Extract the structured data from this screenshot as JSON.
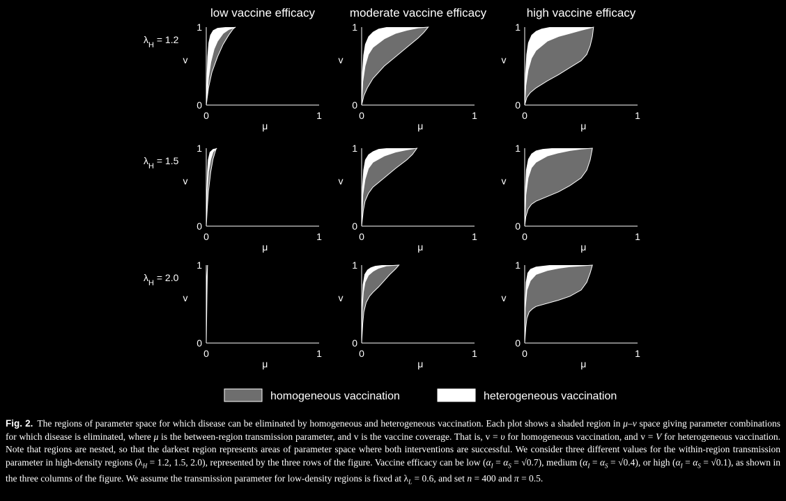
{
  "chart_data": {
    "type": "area",
    "column_titles": [
      "low vaccine efficacy",
      "moderate vaccine efficacy",
      "high vaccine efficacy"
    ],
    "row_labels": [
      {
        "symbol": "λ",
        "subscript": "H",
        "value": " = 1.2"
      },
      {
        "symbol": "λ",
        "subscript": "H",
        "value": " = 1.5"
      },
      {
        "symbol": "λ",
        "subscript": "H",
        "value": " = 2.0"
      }
    ],
    "xlabel": "μ",
    "ylabel": "v",
    "xlim": [
      0,
      1
    ],
    "ylim": [
      0,
      1
    ],
    "xticks": [
      "0",
      "1"
    ],
    "yticks": [
      "0",
      "1"
    ],
    "legend": [
      {
        "label": "homogeneous vaccination",
        "color": "#6e6e6e"
      },
      {
        "label": "heterogeneous vaccination",
        "color": "#ffffff"
      }
    ],
    "panels": [
      {
        "row": 0,
        "col": 0,
        "homogeneous_lower": [
          [
            0,
            0
          ],
          [
            0.02,
            0.22
          ],
          [
            0.05,
            0.42
          ],
          [
            0.1,
            0.62
          ],
          [
            0.15,
            0.78
          ],
          [
            0.2,
            0.9
          ],
          [
            0.24,
            0.98
          ],
          [
            0.26,
            1.0
          ]
        ],
        "homogeneous_upper": [
          [
            0,
            0
          ],
          [
            0.02,
            0.35
          ],
          [
            0.04,
            0.55
          ],
          [
            0.07,
            0.72
          ],
          [
            0.1,
            0.82
          ],
          [
            0.15,
            0.92
          ],
          [
            0.2,
            0.97
          ],
          [
            0.26,
            1.0
          ]
        ],
        "heterogeneous_upper": [
          [
            0,
            0
          ],
          [
            0.005,
            0.4
          ],
          [
            0.01,
            0.62
          ],
          [
            0.02,
            0.8
          ],
          [
            0.035,
            0.9
          ],
          [
            0.06,
            0.96
          ],
          [
            0.1,
            0.99
          ],
          [
            0.17,
            1.0
          ],
          [
            0.34,
            1.0
          ]
        ]
      },
      {
        "row": 0,
        "col": 1,
        "homogeneous_lower": [
          [
            0,
            0
          ],
          [
            0.02,
            0.12
          ],
          [
            0.05,
            0.22
          ],
          [
            0.1,
            0.34
          ],
          [
            0.2,
            0.5
          ],
          [
            0.3,
            0.62
          ],
          [
            0.4,
            0.74
          ],
          [
            0.5,
            0.86
          ],
          [
            0.55,
            0.93
          ],
          [
            0.59,
            1.0
          ]
        ],
        "homogeneous_upper": [
          [
            0,
            0
          ],
          [
            0.01,
            0.3
          ],
          [
            0.03,
            0.5
          ],
          [
            0.06,
            0.65
          ],
          [
            0.1,
            0.74
          ],
          [
            0.2,
            0.85
          ],
          [
            0.3,
            0.92
          ],
          [
            0.4,
            0.96
          ],
          [
            0.5,
            0.99
          ],
          [
            0.59,
            1.0
          ]
        ],
        "heterogeneous_upper": [
          [
            0,
            0
          ],
          [
            0.005,
            0.42
          ],
          [
            0.015,
            0.64
          ],
          [
            0.03,
            0.78
          ],
          [
            0.06,
            0.88
          ],
          [
            0.1,
            0.94
          ],
          [
            0.15,
            0.98
          ],
          [
            0.22,
            1.0
          ],
          [
            0.59,
            1.0
          ]
        ]
      },
      {
        "row": 0,
        "col": 2,
        "homogeneous_lower": [
          [
            0,
            0
          ],
          [
            0.02,
            0.1
          ],
          [
            0.05,
            0.16
          ],
          [
            0.1,
            0.22
          ],
          [
            0.2,
            0.31
          ],
          [
            0.3,
            0.39
          ],
          [
            0.4,
            0.48
          ],
          [
            0.5,
            0.57
          ],
          [
            0.55,
            0.65
          ],
          [
            0.58,
            0.76
          ],
          [
            0.6,
            0.88
          ],
          [
            0.61,
            1.0
          ]
        ],
        "homogeneous_upper": [
          [
            0,
            0
          ],
          [
            0.01,
            0.25
          ],
          [
            0.03,
            0.45
          ],
          [
            0.06,
            0.6
          ],
          [
            0.1,
            0.7
          ],
          [
            0.2,
            0.82
          ],
          [
            0.3,
            0.88
          ],
          [
            0.4,
            0.92
          ],
          [
            0.5,
            0.96
          ],
          [
            0.61,
            1.0
          ]
        ],
        "heterogeneous_upper": [
          [
            0,
            0
          ],
          [
            0.005,
            0.4
          ],
          [
            0.015,
            0.65
          ],
          [
            0.03,
            0.8
          ],
          [
            0.06,
            0.9
          ],
          [
            0.1,
            0.95
          ],
          [
            0.15,
            0.98
          ],
          [
            0.22,
            1.0
          ],
          [
            0.61,
            1.0
          ]
        ]
      },
      {
        "row": 1,
        "col": 0,
        "homogeneous_lower": [
          [
            0,
            0
          ],
          [
            0.01,
            0.25
          ],
          [
            0.02,
            0.45
          ],
          [
            0.04,
            0.7
          ],
          [
            0.06,
            0.86
          ],
          [
            0.08,
            0.96
          ],
          [
            0.09,
            1.0
          ]
        ],
        "homogeneous_upper": [
          [
            0,
            0
          ],
          [
            0.005,
            0.3
          ],
          [
            0.01,
            0.5
          ],
          [
            0.02,
            0.7
          ],
          [
            0.04,
            0.86
          ],
          [
            0.06,
            0.95
          ],
          [
            0.09,
            1.0
          ]
        ],
        "heterogeneous_upper": [
          [
            0,
            0
          ],
          [
            0.003,
            0.45
          ],
          [
            0.008,
            0.7
          ],
          [
            0.015,
            0.85
          ],
          [
            0.03,
            0.95
          ],
          [
            0.06,
            0.99
          ],
          [
            0.1,
            1.0
          ],
          [
            0.14,
            1.0
          ]
        ]
      },
      {
        "row": 1,
        "col": 1,
        "homogeneous_lower": [
          [
            0,
            0
          ],
          [
            0.015,
            0.2
          ],
          [
            0.03,
            0.32
          ],
          [
            0.06,
            0.42
          ],
          [
            0.1,
            0.5
          ],
          [
            0.2,
            0.62
          ],
          [
            0.3,
            0.74
          ],
          [
            0.4,
            0.85
          ],
          [
            0.45,
            0.92
          ],
          [
            0.49,
            1.0
          ]
        ],
        "homogeneous_upper": [
          [
            0,
            0
          ],
          [
            0.01,
            0.4
          ],
          [
            0.03,
            0.6
          ],
          [
            0.06,
            0.74
          ],
          [
            0.1,
            0.82
          ],
          [
            0.2,
            0.9
          ],
          [
            0.3,
            0.95
          ],
          [
            0.4,
            0.98
          ],
          [
            0.49,
            1.0
          ]
        ],
        "heterogeneous_upper": [
          [
            0,
            0
          ],
          [
            0.005,
            0.5
          ],
          [
            0.015,
            0.72
          ],
          [
            0.03,
            0.85
          ],
          [
            0.06,
            0.92
          ],
          [
            0.1,
            0.96
          ],
          [
            0.15,
            0.99
          ],
          [
            0.22,
            1.0
          ],
          [
            0.49,
            1.0
          ]
        ]
      },
      {
        "row": 1,
        "col": 2,
        "homogeneous_lower": [
          [
            0,
            0
          ],
          [
            0.01,
            0.12
          ],
          [
            0.03,
            0.22
          ],
          [
            0.06,
            0.28
          ],
          [
            0.1,
            0.32
          ],
          [
            0.2,
            0.38
          ],
          [
            0.3,
            0.44
          ],
          [
            0.4,
            0.52
          ],
          [
            0.5,
            0.62
          ],
          [
            0.55,
            0.72
          ],
          [
            0.58,
            0.85
          ],
          [
            0.6,
            1.0
          ]
        ],
        "homogeneous_upper": [
          [
            0,
            0
          ],
          [
            0.01,
            0.4
          ],
          [
            0.03,
            0.62
          ],
          [
            0.06,
            0.75
          ],
          [
            0.1,
            0.82
          ],
          [
            0.2,
            0.9
          ],
          [
            0.3,
            0.94
          ],
          [
            0.4,
            0.97
          ],
          [
            0.5,
            0.99
          ],
          [
            0.6,
            1.0
          ]
        ],
        "heterogeneous_upper": [
          [
            0,
            0
          ],
          [
            0.005,
            0.5
          ],
          [
            0.012,
            0.72
          ],
          [
            0.03,
            0.86
          ],
          [
            0.06,
            0.93
          ],
          [
            0.1,
            0.97
          ],
          [
            0.16,
            0.99
          ],
          [
            0.24,
            1.0
          ],
          [
            0.6,
            1.0
          ]
        ]
      },
      {
        "row": 2,
        "col": 0,
        "homogeneous_lower": [
          [
            0,
            0
          ],
          [
            0.003,
            0.3
          ],
          [
            0.006,
            0.6
          ],
          [
            0.009,
            0.85
          ],
          [
            0.011,
            1.0
          ]
        ],
        "homogeneous_upper": [
          [
            0,
            0
          ],
          [
            0.002,
            0.3
          ],
          [
            0.004,
            0.6
          ],
          [
            0.006,
            0.85
          ],
          [
            0.011,
            1.0
          ]
        ],
        "heterogeneous_upper": [
          [
            0,
            0
          ],
          [
            0.002,
            0.5
          ],
          [
            0.005,
            0.8
          ],
          [
            0.01,
            0.95
          ],
          [
            0.015,
            1.0
          ],
          [
            0.025,
            1.0
          ]
        ]
      },
      {
        "row": 2,
        "col": 1,
        "homogeneous_lower": [
          [
            0,
            0
          ],
          [
            0.01,
            0.25
          ],
          [
            0.02,
            0.4
          ],
          [
            0.04,
            0.52
          ],
          [
            0.07,
            0.6
          ],
          [
            0.1,
            0.65
          ],
          [
            0.15,
            0.72
          ],
          [
            0.2,
            0.8
          ],
          [
            0.25,
            0.88
          ],
          [
            0.3,
            0.95
          ],
          [
            0.33,
            1.0
          ]
        ],
        "homogeneous_upper": [
          [
            0,
            0
          ],
          [
            0.005,
            0.45
          ],
          [
            0.015,
            0.65
          ],
          [
            0.03,
            0.78
          ],
          [
            0.06,
            0.87
          ],
          [
            0.1,
            0.92
          ],
          [
            0.15,
            0.96
          ],
          [
            0.22,
            0.99
          ],
          [
            0.33,
            1.0
          ]
        ],
        "heterogeneous_upper": [
          [
            0,
            0
          ],
          [
            0.004,
            0.55
          ],
          [
            0.01,
            0.75
          ],
          [
            0.025,
            0.88
          ],
          [
            0.05,
            0.94
          ],
          [
            0.08,
            0.97
          ],
          [
            0.12,
            0.99
          ],
          [
            0.18,
            1.0
          ],
          [
            0.33,
            1.0
          ]
        ]
      },
      {
        "row": 2,
        "col": 2,
        "homogeneous_lower": [
          [
            0,
            0
          ],
          [
            0.01,
            0.2
          ],
          [
            0.02,
            0.32
          ],
          [
            0.04,
            0.4
          ],
          [
            0.07,
            0.44
          ],
          [
            0.1,
            0.47
          ],
          [
            0.2,
            0.51
          ],
          [
            0.3,
            0.55
          ],
          [
            0.4,
            0.6
          ],
          [
            0.5,
            0.68
          ],
          [
            0.55,
            0.78
          ],
          [
            0.58,
            0.9
          ],
          [
            0.6,
            1.0
          ]
        ],
        "homogeneous_upper": [
          [
            0,
            0
          ],
          [
            0.005,
            0.45
          ],
          [
            0.02,
            0.68
          ],
          [
            0.05,
            0.8
          ],
          [
            0.1,
            0.88
          ],
          [
            0.2,
            0.93
          ],
          [
            0.3,
            0.96
          ],
          [
            0.4,
            0.98
          ],
          [
            0.5,
            0.99
          ],
          [
            0.6,
            1.0
          ]
        ],
        "heterogeneous_upper": [
          [
            0,
            0
          ],
          [
            0.004,
            0.55
          ],
          [
            0.01,
            0.78
          ],
          [
            0.025,
            0.9
          ],
          [
            0.05,
            0.95
          ],
          [
            0.1,
            0.98
          ],
          [
            0.16,
            0.99
          ],
          [
            0.22,
            1.0
          ],
          [
            0.6,
            1.0
          ]
        ]
      }
    ]
  },
  "caption": {
    "label": "Fig. 2.",
    "parts": [
      {
        "t": "The regions of parameter space for which disease can be eliminated by homogeneous and heterogeneous vaccination. Each plot shows a shaded region in "
      },
      {
        "t": "μ–v",
        "m": true
      },
      {
        "t": " space giving parameter combinations for which disease is eliminated, where "
      },
      {
        "t": "μ",
        "m": true
      },
      {
        "t": " is the between-region transmission parameter, and v is the vaccine coverage. That is, v = "
      },
      {
        "t": "υ",
        "m": true
      },
      {
        "t": " for homogeneous vaccination, and v = "
      },
      {
        "t": "V",
        "m": true
      },
      {
        "t": " for heterogeneous vaccination. Note that regions are nested, so that the darkest region represents areas of parameter space where both interventions are successful. We consider three different values for the within-region transmission parameter in high-density regions ("
      },
      {
        "t": "λ",
        "sub": "H"
      },
      {
        "t": " = 1.2, 1.5, 2.0), represented by the three rows of the figure. Vaccine efficacy can be low ("
      },
      {
        "t": "α",
        "m": true,
        "sub": "I"
      },
      {
        "t": " = "
      },
      {
        "t": "α",
        "m": true,
        "sub": "S"
      },
      {
        "t": " = √0.7), medium ("
      },
      {
        "t": "α",
        "m": true,
        "sub": "I"
      },
      {
        "t": " = "
      },
      {
        "t": "α",
        "m": true,
        "sub": "S"
      },
      {
        "t": " = √0.4), or high ("
      },
      {
        "t": "α",
        "m": true,
        "sub": "I"
      },
      {
        "t": " = "
      },
      {
        "t": "α",
        "m": true,
        "sub": "S"
      },
      {
        "t": " = √0.1), as shown in the three columns of the figure. We assume the transmission parameter for low-density regions is fixed at "
      },
      {
        "t": "λ",
        "sub": "L"
      },
      {
        "t": " = 0.6, and set "
      },
      {
        "t": "n",
        "m": true
      },
      {
        "t": " = 400 and "
      },
      {
        "t": "π",
        "m": true
      },
      {
        "t": " = 0.5."
      }
    ]
  }
}
